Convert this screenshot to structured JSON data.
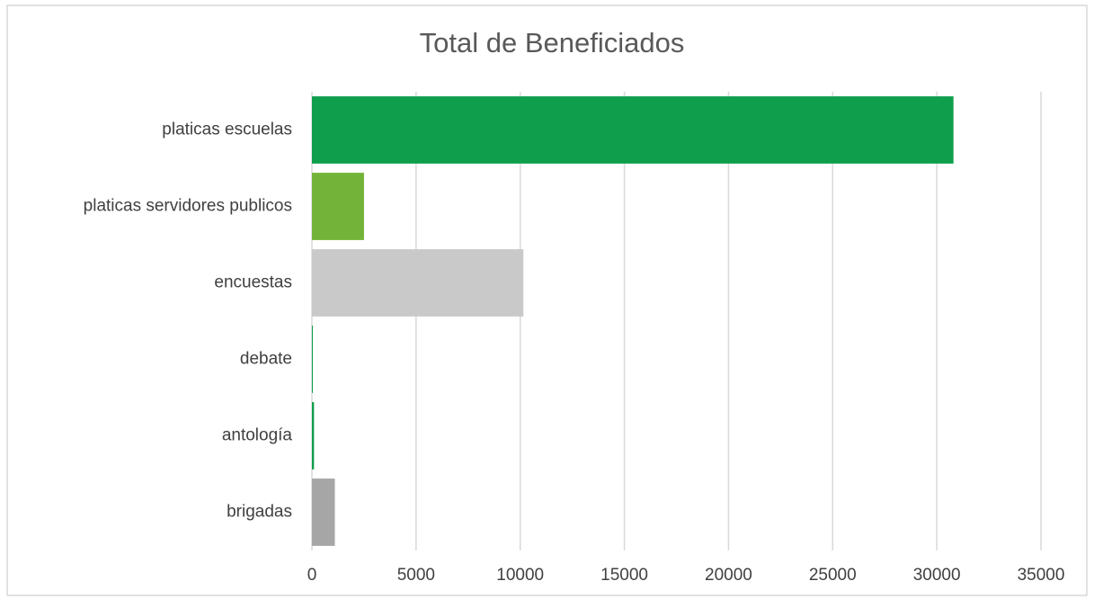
{
  "chart_data": {
    "type": "bar",
    "orientation": "horizontal",
    "title": "Total de Beneficiados",
    "categories": [
      "platicas escuelas",
      "platicas servidores publicos",
      "encuestas",
      "debate",
      "antología",
      "brigadas"
    ],
    "values": [
      30800,
      2500,
      10150,
      30,
      100,
      1100
    ],
    "colors": [
      "#0f9e4c",
      "#73b33a",
      "#c9c9c9",
      "#0f9e4c",
      "#0f9e4c",
      "#a6a6a6"
    ],
    "xlim": [
      0,
      35000
    ],
    "xticks": [
      0,
      5000,
      10000,
      15000,
      20000,
      25000,
      30000,
      35000
    ],
    "grid": true
  }
}
